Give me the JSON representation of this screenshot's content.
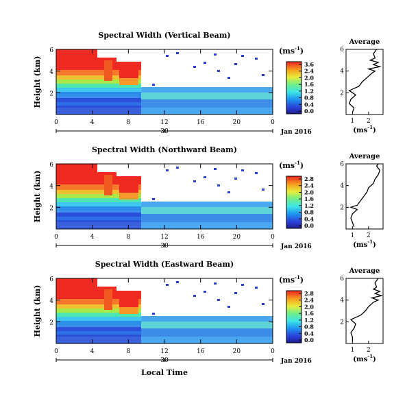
{
  "figure": {
    "x_label": "Local Time",
    "date_label": "Jan 2016",
    "colorbar_unit": "(ms",
    "colorbar_unit_exp": "-1",
    "colorbar_unit_close": ")",
    "avg_unit": "(ms",
    "avg_unit_exp": "-1",
    "avg_unit_close": ")",
    "avg_title": "Average",
    "y_label": "Height (km)"
  },
  "chart_data": [
    {
      "type": "heatmap",
      "title": "Spectral Width (Vertical Beam)",
      "ylabel": "Height (km)",
      "xlabel": "Local Time",
      "x_ticks": [
        "0",
        "4",
        "8",
        "12",
        "16",
        "20",
        "0"
      ],
      "x_range": [
        0,
        24
      ],
      "date_tick": "30",
      "y_ticks": [
        "2",
        "4",
        "6"
      ],
      "y_range": [
        0,
        6
      ],
      "colorbar_ticks": [
        "3.6",
        "2.4",
        "2.0",
        "1.6",
        "1.2",
        "0.8",
        "0.4",
        "0.0"
      ],
      "colorbar_range": [
        0.0,
        3.6
      ],
      "avg_profile": {
        "title": "Average",
        "xlabel": "(ms-1)",
        "x_ticks": [
          "1",
          "2"
        ],
        "y_ticks": [
          "2",
          "4",
          "6"
        ],
        "height_km": [
          0.2,
          0.6,
          1.0,
          1.4,
          1.8,
          2.2,
          2.6,
          3.0,
          3.4,
          3.8,
          4.0,
          4.2,
          4.4,
          4.6,
          4.8,
          5.0,
          5.2,
          5.6,
          6.0
        ],
        "width_ms": [
          1.0,
          1.1,
          0.8,
          0.9,
          1.2,
          0.8,
          1.4,
          1.6,
          1.9,
          2.2,
          2.4,
          2.0,
          2.7,
          2.3,
          2.6,
          2.1,
          2.4,
          2.3,
          2.5
        ]
      }
    },
    {
      "type": "heatmap",
      "title": "Spectral Width (Northward Beam)",
      "ylabel": "Height (km)",
      "xlabel": "Local Time",
      "x_ticks": [
        "0",
        "4",
        "8",
        "12",
        "16",
        "20",
        "0"
      ],
      "x_range": [
        0,
        24
      ],
      "date_tick": "30",
      "y_ticks": [
        "2",
        "4",
        "6"
      ],
      "y_range": [
        0,
        6
      ],
      "colorbar_ticks": [
        "2.8",
        "2.4",
        "2.0",
        "1.6",
        "1.2",
        "0.8",
        "0.4",
        "0.0"
      ],
      "colorbar_range": [
        0.0,
        2.8
      ],
      "avg_profile": {
        "title": "Average",
        "xlabel": "(ms-1)",
        "x_ticks": [
          "1",
          "2"
        ],
        "y_ticks": [
          "2",
          "4",
          "6"
        ],
        "height_km": [
          0.2,
          0.6,
          1.0,
          1.4,
          1.8,
          2.0,
          2.2,
          2.6,
          3.0,
          3.4,
          3.8,
          4.2,
          4.6,
          5.0,
          5.4,
          5.8,
          6.0
        ],
        "width_ms": [
          1.1,
          1.0,
          0.9,
          1.0,
          1.3,
          0.9,
          1.3,
          1.5,
          1.7,
          1.9,
          2.0,
          2.3,
          2.4,
          2.6,
          2.7,
          2.5,
          2.6
        ]
      }
    },
    {
      "type": "heatmap",
      "title": "Spectral Width (Eastward Beam)",
      "ylabel": "Height (km)",
      "xlabel": "Local Time",
      "x_ticks": [
        "0",
        "4",
        "8",
        "12",
        "16",
        "20",
        "0"
      ],
      "x_range": [
        0,
        24
      ],
      "date_tick": "30",
      "y_ticks": [
        "2",
        "4",
        "6"
      ],
      "y_range": [
        0,
        6
      ],
      "colorbar_ticks": [
        "2.8",
        "2.4",
        "2.0",
        "1.6",
        "1.2",
        "0.8",
        "0.4",
        "0.0"
      ],
      "colorbar_range": [
        0.0,
        2.8
      ],
      "avg_profile": {
        "title": "Average",
        "xlabel": "(ms-1)",
        "x_ticks": [
          "1",
          "2"
        ],
        "y_ticks": [
          "2",
          "4",
          "6"
        ],
        "height_km": [
          0.2,
          0.6,
          1.0,
          1.4,
          1.8,
          2.2,
          2.6,
          3.0,
          3.4,
          3.8,
          4.0,
          4.2,
          4.4,
          4.6,
          4.8,
          5.0,
          5.2,
          5.6,
          6.0
        ],
        "width_ms": [
          1.0,
          1.0,
          0.9,
          1.1,
          1.2,
          0.9,
          1.5,
          1.8,
          2.0,
          2.3,
          2.6,
          2.2,
          2.8,
          2.4,
          2.7,
          2.3,
          2.5,
          2.4,
          2.6
        ]
      }
    }
  ]
}
